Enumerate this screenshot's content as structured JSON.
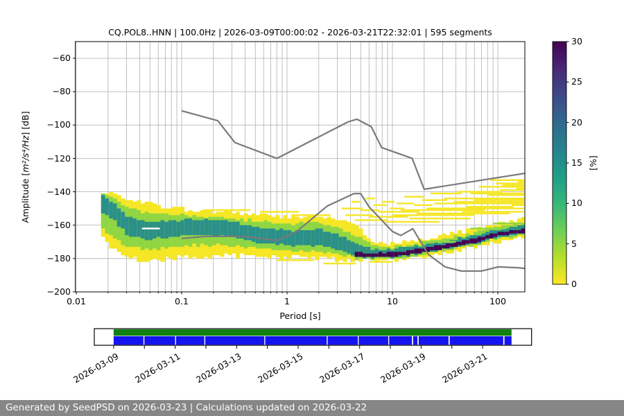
{
  "title": "CQ.POL8..HNN | 100.0Hz | 2026-03-09T00:00:02 - 2026-03-21T22:32:01 | 595 segments",
  "axes": {
    "ylabel_parts": [
      "Amplitude [",
      "m²/s⁴/Hz",
      "] [dB]"
    ],
    "xlabel": "Period [s]",
    "xtick_labels": [
      "0.01",
      "0.1",
      "1",
      "10",
      "100"
    ],
    "ytick_labels": [
      "−60",
      "−80",
      "−100",
      "−120",
      "−140",
      "−160",
      "−180",
      "−200"
    ]
  },
  "colorbar": {
    "label": "[%]",
    "tick_labels": [
      "0",
      "5",
      "10",
      "15",
      "20",
      "25",
      "30"
    ],
    "tick_values": [
      0,
      5,
      10,
      15,
      20,
      25,
      30
    ],
    "gradient_top_to_bottom": [
      "#440154",
      "#482878",
      "#3e4989",
      "#31688e",
      "#26828e",
      "#1f9e89",
      "#35b779",
      "#6ece58",
      "#b5de2b",
      "#fde725"
    ]
  },
  "timeline": {
    "labels": [
      "2026-03-09",
      "2026-03-11",
      "2026-03-13",
      "2026-03-15",
      "2026-03-17",
      "2026-03-19",
      "2026-03-21"
    ],
    "label_days": [
      0,
      2,
      4,
      6,
      8,
      10,
      12
    ],
    "tick_days": [
      0,
      1,
      2,
      3,
      4,
      5,
      6,
      7,
      8,
      9,
      10,
      11,
      12
    ],
    "span_days": 12.94,
    "green_color": "#128012",
    "blue_color": "#1414f0",
    "green_segments": [
      [
        0,
        12.94
      ]
    ],
    "blue_segments": [
      [
        0,
        0.97
      ],
      [
        1.0,
        2.0
      ],
      [
        2.03,
        2.95
      ],
      [
        2.98,
        4.9
      ],
      [
        4.93,
        6.93
      ],
      [
        6.96,
        7.94
      ],
      [
        7.97,
        8.93
      ],
      [
        8.96,
        9.7
      ],
      [
        9.74,
        9.88
      ],
      [
        9.92,
        10.89
      ],
      [
        10.93,
        12.67
      ],
      [
        12.71,
        12.94
      ]
    ]
  },
  "footer": {
    "text": "Generated by SeedPSD on 2026-03-23 | Calculations updated on 2026-03-22"
  },
  "chart_data": {
    "type": "heatmap",
    "subtype": "ppsd-probability-histogram",
    "xlabel": "Period [s]",
    "ylabel": "Amplitude [m^2/s^4/Hz] [dB]",
    "xlim_period_s": [
      0.01,
      179
    ],
    "ylim_db": [
      -200,
      -50
    ],
    "colorbar_percent_lim": [
      0,
      30
    ],
    "grid_db_lines": [
      -60,
      -80,
      -100,
      -120,
      -140,
      -160,
      -180
    ],
    "colors": {
      "yellow": "#f5e626",
      "green": "#8fd644",
      "teal": "#2b9089",
      "dark": "#440154",
      "noise_model": "#7a7a7a",
      "grid": "#b9b9b9"
    },
    "band_anchors": [
      {
        "p": 0.017,
        "y": [
          -140.5,
          -168
        ],
        "g": [
          -141.5,
          -162
        ],
        "t": [
          -142.5,
          -152
        ],
        "d": null
      },
      {
        "p": 0.022,
        "y": [
          -141,
          -175
        ],
        "g": [
          -144,
          -168
        ],
        "t": [
          -147,
          -157
        ],
        "d": null
      },
      {
        "p": 0.03,
        "y": [
          -144,
          -180.5
        ],
        "g": [
          -150,
          -173
        ],
        "t": [
          -155,
          -166.5
        ],
        "d": null
      },
      {
        "p": 0.045,
        "y": [
          -147,
          -181
        ],
        "g": [
          -152.5,
          -174.5
        ],
        "t": [
          -158,
          -168.5
        ],
        "d": null
      },
      {
        "p": 0.07,
        "y": [
          -149.5,
          -180
        ],
        "g": [
          -153.5,
          -173.5
        ],
        "t": [
          -157.5,
          -167.5
        ],
        "d": null
      },
      {
        "p": 0.12,
        "y": [
          -151.5,
          -179
        ],
        "g": [
          -154.5,
          -172
        ],
        "t": [
          -156.5,
          -166
        ],
        "d": null
      },
      {
        "p": 0.25,
        "y": [
          -152,
          -178
        ],
        "g": [
          -155.5,
          -172
        ],
        "t": [
          -157.5,
          -166.5
        ],
        "d": null
      },
      {
        "p": 0.5,
        "y": [
          -153.5,
          -179
        ],
        "g": [
          -157.5,
          -174
        ],
        "t": [
          -161,
          -170.5
        ],
        "d": null
      },
      {
        "p": 1.0,
        "y": [
          -155,
          -179.5
        ],
        "g": [
          -159.5,
          -175
        ],
        "t": [
          -163.5,
          -172
        ],
        "d": null
      },
      {
        "p": 2.0,
        "y": [
          -155,
          -180
        ],
        "g": [
          -158.5,
          -176
        ],
        "t": [
          -162.5,
          -172.5
        ],
        "d": null
      },
      {
        "p": 3.0,
        "y": [
          -157,
          -180.5
        ],
        "g": [
          -161.5,
          -177
        ],
        "t": [
          -165.5,
          -174.5
        ],
        "d": null
      },
      {
        "p": 4.2,
        "y": [
          -159.5,
          -181
        ],
        "g": [
          -166,
          -179.8
        ],
        "t": [
          -171,
          -179
        ],
        "d": [
          -176.3,
          -178.8
        ]
      },
      {
        "p": 6.5,
        "y": [
          -170.5,
          -181.2
        ],
        "g": [
          -172.5,
          -180.5
        ],
        "t": [
          -174.5,
          -179.8
        ],
        "d": [
          -176.6,
          -179.2
        ]
      },
      {
        "p": 9,
        "y": [
          -171,
          -181
        ],
        "g": [
          -173,
          -180.3
        ],
        "t": [
          -174.6,
          -179.5
        ],
        "d": [
          -176.2,
          -178.9
        ]
      },
      {
        "p": 13,
        "y": [
          -170,
          -180
        ],
        "g": [
          -172.2,
          -179.2
        ],
        "t": [
          -173.6,
          -178.5
        ],
        "d": [
          -175.4,
          -177.9
        ]
      },
      {
        "p": 20,
        "y": [
          -168,
          -178.5
        ],
        "g": [
          -170.3,
          -177.3
        ],
        "t": [
          -171.7,
          -176.6
        ],
        "d": [
          -173.5,
          -176
        ]
      },
      {
        "p": 35,
        "y": [
          -165,
          -176
        ],
        "g": [
          -167.5,
          -174.5
        ],
        "t": [
          -168.9,
          -173.8
        ],
        "d": [
          -170.7,
          -173.2
        ]
      },
      {
        "p": 60,
        "y": [
          -162.4,
          -173
        ],
        "g": [
          -164.6,
          -171.6
        ],
        "t": [
          -166,
          -170.9
        ],
        "d": [
          -167.8,
          -170.3
        ]
      },
      {
        "p": 100,
        "y": [
          -158.6,
          -169.5
        ],
        "g": [
          -160.8,
          -167.8
        ],
        "t": [
          -162.2,
          -167.1
        ],
        "d": [
          -164,
          -166.5
        ]
      },
      {
        "p": 178,
        "y": [
          -156.5,
          -167
        ],
        "g": [
          -158.7,
          -165.7
        ],
        "t": [
          -160.1,
          -165
        ],
        "d": [
          -161.9,
          -164.5
        ]
      }
    ],
    "yellow_streaks": [
      [
        0.16,
        0.45,
        -150.8
      ],
      [
        0.55,
        1.3,
        -152.3
      ],
      [
        1.1,
        2.6,
        -153.6
      ],
      [
        2.2,
        4.5,
        -183
      ],
      [
        0.8,
        1.8,
        -181.5
      ],
      [
        6,
        10,
        -182.3
      ],
      [
        3.3,
        5.2,
        -150.5
      ],
      [
        3.6,
        6.5,
        -154.5
      ],
      [
        4.1,
        5.0,
        -146
      ],
      [
        4.4,
        9,
        -157.5
      ],
      [
        5,
        7.5,
        -151.5
      ],
      [
        5.6,
        6.8,
        -144.5
      ],
      [
        6,
        14,
        -155.5
      ],
      [
        6.6,
        8.8,
        -148.5
      ],
      [
        7.3,
        18,
        -152.5
      ],
      [
        8,
        10.5,
        -146
      ],
      [
        8.6,
        28,
        -158
      ],
      [
        9.4,
        13,
        -150
      ],
      [
        10,
        40,
        -154
      ],
      [
        11,
        16,
        -147.5
      ],
      [
        12,
        75,
        -151
      ],
      [
        13,
        20,
        -143.5
      ],
      [
        14.5,
        55,
        -156.5
      ],
      [
        16,
        24,
        -148.5
      ],
      [
        17,
        130,
        -153
      ],
      [
        19,
        33,
        -145.5
      ],
      [
        21,
        90,
        -150
      ],
      [
        23,
        45,
        -141.5
      ],
      [
        25,
        170,
        -147
      ],
      [
        28,
        60,
        -153.8
      ],
      [
        31,
        178,
        -143.8
      ],
      [
        34,
        80,
        -150.5
      ],
      [
        38,
        178,
        -146.2
      ],
      [
        42,
        110,
        -139.8
      ],
      [
        46,
        178,
        -152
      ],
      [
        50,
        140,
        -148.8
      ],
      [
        55,
        178,
        -141.2
      ],
      [
        60,
        178,
        -144.8
      ],
      [
        66,
        178,
        -137.5
      ],
      [
        72,
        178,
        -150.2
      ],
      [
        80,
        178,
        -142.5
      ],
      [
        85,
        178,
        -133.5
      ],
      [
        88,
        178,
        -146.8
      ],
      [
        95,
        178,
        -134.8
      ],
      [
        105,
        178,
        -139
      ],
      [
        110,
        178,
        -135.8
      ],
      [
        115,
        178,
        -144
      ],
      [
        125,
        178,
        -136.9
      ],
      [
        135,
        178,
        -148
      ],
      [
        145,
        178,
        -141
      ],
      [
        150,
        178,
        -137.8
      ],
      [
        155,
        178,
        -133.9
      ]
    ],
    "green_streaks": [
      [
        18,
        40,
        -170
      ],
      [
        55,
        120,
        -162.5
      ],
      [
        90,
        178,
        -159.3
      ]
    ],
    "white_streaks": [
      [
        0.042,
        0.062,
        -162.3
      ]
    ],
    "noise_models": {
      "nhnm": [
        [
          0.1,
          -91.5
        ],
        [
          0.22,
          -97.4
        ],
        [
          0.32,
          -110.5
        ],
        [
          0.8,
          -120
        ],
        [
          3.8,
          -98.1
        ],
        [
          4.6,
          -96.5
        ],
        [
          6.3,
          -101
        ],
        [
          7.9,
          -113.5
        ],
        [
          15.4,
          -120
        ],
        [
          20,
          -138.5
        ],
        [
          354.8,
          -126
        ]
      ],
      "nlnm": [
        [
          0.1,
          -168
        ],
        [
          0.17,
          -166.7
        ],
        [
          0.4,
          -166.7
        ],
        [
          0.8,
          -169.2
        ],
        [
          1.24,
          -163.7
        ],
        [
          2.4,
          -148.6
        ],
        [
          4.3,
          -141.1
        ],
        [
          5,
          -141.1
        ],
        [
          6,
          -149
        ],
        [
          10,
          -163.8
        ],
        [
          12,
          -166.2
        ],
        [
          15.6,
          -162.1
        ],
        [
          21.9,
          -177.5
        ],
        [
          31.6,
          -185
        ],
        [
          45,
          -187.5
        ],
        [
          70,
          -187.5
        ],
        [
          101,
          -185
        ],
        [
          154,
          -185.5
        ],
        [
          328,
          -187.5
        ]
      ]
    }
  }
}
